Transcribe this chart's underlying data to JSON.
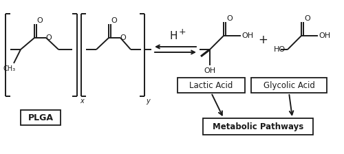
{
  "fig_width": 5.0,
  "fig_height": 2.24,
  "dpi": 100,
  "bg_color": "#ffffff",
  "line_color": "#1a1a1a",
  "text_color": "#1a1a1a",
  "plga_label": "PLGA",
  "lactic_acid_label": "Lactic Acid",
  "glycolic_acid_label": "Glycolic Acid",
  "metabolic_label": "Metabolic Pathways",
  "lw": 1.4
}
